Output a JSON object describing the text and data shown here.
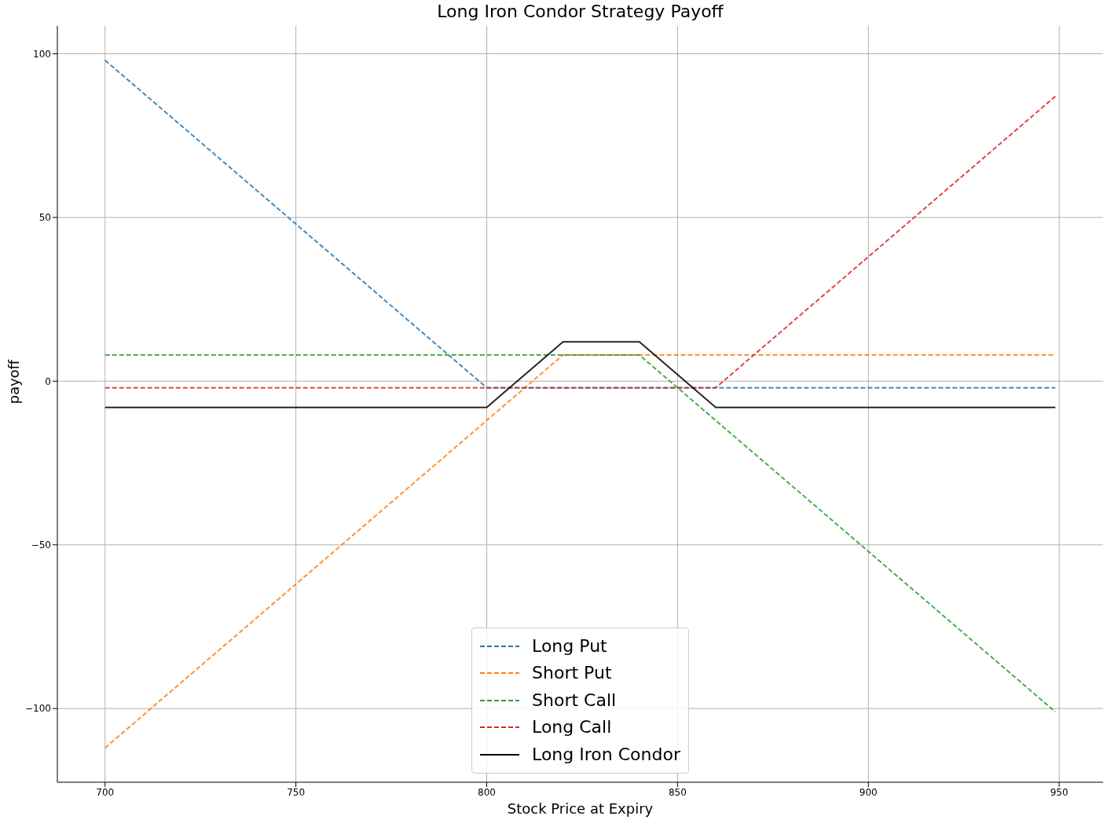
{
  "chart_data": {
    "type": "line",
    "title": "Long Iron Condor Strategy Payoff",
    "xlabel": "Stock Price at Expiry",
    "ylabel": "payoff",
    "x": [
      700,
      800,
      820,
      840,
      860,
      949
    ],
    "series": [
      {
        "name": "Long Put",
        "color": "#1f77b4",
        "line_style": "dashed",
        "values": [
          98,
          -2,
          -2,
          -2,
          -2,
          -2
        ]
      },
      {
        "name": "Short Put",
        "color": "#ff7f0e",
        "line_style": "dashed",
        "values": [
          -112,
          -12,
          8,
          8,
          8,
          8
        ]
      },
      {
        "name": "Short Call",
        "color": "#2ca02c",
        "line_style": "dashed",
        "values": [
          8,
          8,
          8,
          8,
          -12,
          -101
        ]
      },
      {
        "name": "Long Call",
        "color": "#d62728",
        "line_style": "dashed",
        "values": [
          -2,
          -2,
          -2,
          -2,
          -2,
          87
        ]
      },
      {
        "name": "Long Iron Condor",
        "color": "#000000",
        "line_style": "solid",
        "values": [
          -8,
          -8,
          12,
          12,
          -8,
          -8
        ]
      }
    ],
    "xlim": [
      687.5,
      961.5
    ],
    "xticks": [
      700,
      750,
      800,
      850,
      900,
      950
    ],
    "ylim": [
      -122.5,
      108.5
    ],
    "yticks": [
      -100,
      -50,
      0,
      50,
      100
    ],
    "grid": true,
    "legend": "bottom"
  }
}
